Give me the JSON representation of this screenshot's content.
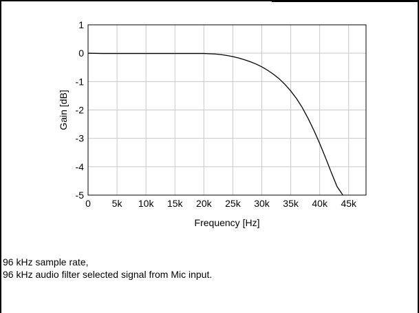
{
  "chart_data": {
    "type": "line",
    "title": "",
    "xlabel": "Frequency [Hz]",
    "ylabel": "Gain [dB]",
    "xlim": [
      0,
      48000
    ],
    "ylim": [
      -5,
      1
    ],
    "grid": true,
    "x_ticks": [
      {
        "value": 0,
        "label": "0"
      },
      {
        "value": 5000,
        "label": "5k"
      },
      {
        "value": 10000,
        "label": "10k"
      },
      {
        "value": 15000,
        "label": "15k"
      },
      {
        "value": 20000,
        "label": "20k"
      },
      {
        "value": 25000,
        "label": "25k"
      },
      {
        "value": 30000,
        "label": "30k"
      },
      {
        "value": 35000,
        "label": "35k"
      },
      {
        "value": 40000,
        "label": "40k"
      },
      {
        "value": 45000,
        "label": "45k"
      }
    ],
    "y_ticks": [
      {
        "value": 1,
        "label": "1"
      },
      {
        "value": 0,
        "label": "0"
      },
      {
        "value": -1,
        "label": "-1"
      },
      {
        "value": -2,
        "label": "-2"
      },
      {
        "value": -3,
        "label": "-3"
      },
      {
        "value": -4,
        "label": "-4"
      },
      {
        "value": -5,
        "label": "-5"
      }
    ],
    "series": [
      {
        "color": "#000000",
        "x": [
          0,
          2500,
          5000,
          10000,
          15000,
          20000,
          21000,
          22000,
          23000,
          24000,
          25000,
          26000,
          27000,
          28000,
          29000,
          30000,
          31000,
          32000,
          33000,
          34000,
          35000,
          36000,
          37000,
          38000,
          39000,
          40000,
          41000,
          42000,
          43000,
          44000
        ],
        "y": [
          0.0,
          -0.01,
          -0.01,
          -0.01,
          -0.01,
          -0.01,
          -0.02,
          -0.03,
          -0.05,
          -0.08,
          -0.12,
          -0.17,
          -0.23,
          -0.3,
          -0.38,
          -0.48,
          -0.6,
          -0.74,
          -0.9,
          -1.1,
          -1.33,
          -1.6,
          -1.92,
          -2.3,
          -2.72,
          -3.18,
          -3.68,
          -4.2,
          -4.7,
          -5.0
        ]
      }
    ]
  },
  "captions": [
    "96 kHz sample rate,",
    "96 kHz audio filter selected signal from Mic input."
  ]
}
